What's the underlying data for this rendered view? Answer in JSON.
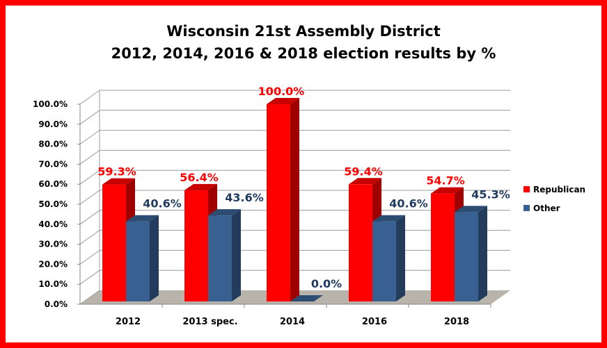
{
  "chart_data": {
    "type": "bar",
    "style": "3d-clustered-column",
    "title": [
      "Wisconsin 21st Assembly District",
      "2012, 2014, 2016 & 2018 election results by %"
    ],
    "xlabel": "",
    "ylabel": "",
    "categories": [
      "2012",
      "2013 spec.",
      "2014",
      "2016",
      "2018"
    ],
    "series": [
      {
        "name": "Republican",
        "color": "#ff0000",
        "label_color": "#ff0000",
        "values": [
          59.3,
          56.4,
          100.0,
          59.4,
          54.7
        ]
      },
      {
        "name": "Other",
        "color": "#386192",
        "label_color": "#1f3a5f",
        "values": [
          40.6,
          43.6,
          0.0,
          40.6,
          45.3
        ]
      }
    ],
    "data_labels": [
      [
        "59.3%",
        "56.4%",
        "100.0%",
        "59.4%",
        "54.7%"
      ],
      [
        "40.6%",
        "43.6%",
        "0.0%",
        "40.6%",
        "45.3%"
      ]
    ],
    "yticks": [
      "0.0%",
      "10.0%",
      "20.0%",
      "30.0%",
      "40.0%",
      "50.0%",
      "60.0%",
      "70.0%",
      "80.0%",
      "90.0%",
      "100.0%"
    ],
    "ylim": [
      0,
      100
    ],
    "grid": true,
    "legend_position": "right",
    "border_color": "#ff0000",
    "floor_color": "#b8b4ac"
  }
}
